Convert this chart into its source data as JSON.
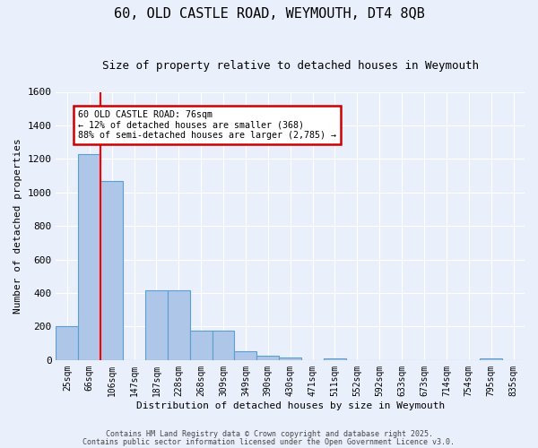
{
  "title": "60, OLD CASTLE ROAD, WEYMOUTH, DT4 8QB",
  "subtitle": "Size of property relative to detached houses in Weymouth",
  "xlabel": "Distribution of detached houses by size in Weymouth",
  "ylabel": "Number of detached properties",
  "categories": [
    "25sqm",
    "66sqm",
    "106sqm",
    "147sqm",
    "187sqm",
    "228sqm",
    "268sqm",
    "309sqm",
    "349sqm",
    "390sqm",
    "430sqm",
    "471sqm",
    "511sqm",
    "552sqm",
    "592sqm",
    "633sqm",
    "673sqm",
    "714sqm",
    "754sqm",
    "795sqm",
    "835sqm"
  ],
  "values": [
    200,
    1230,
    1070,
    0,
    415,
    415,
    175,
    175,
    50,
    25,
    15,
    0,
    12,
    0,
    0,
    0,
    0,
    0,
    0,
    12,
    0
  ],
  "bar_color": "#aec6e8",
  "bar_edge_color": "#5a9fd4",
  "red_line_x": 1.5,
  "annotation_text": "60 OLD CASTLE ROAD: 76sqm\n← 12% of detached houses are smaller (368)\n88% of semi-detached houses are larger (2,785) →",
  "annotation_box_color": "#ffffff",
  "annotation_box_edge": "#cc0000",
  "ylim": [
    0,
    1600
  ],
  "yticks": [
    0,
    200,
    400,
    600,
    800,
    1000,
    1200,
    1400,
    1600
  ],
  "bg_color": "#eaf0fb",
  "grid_color": "#ffffff",
  "footer1": "Contains HM Land Registry data © Crown copyright and database right 2025.",
  "footer2": "Contains public sector information licensed under the Open Government Licence v3.0."
}
